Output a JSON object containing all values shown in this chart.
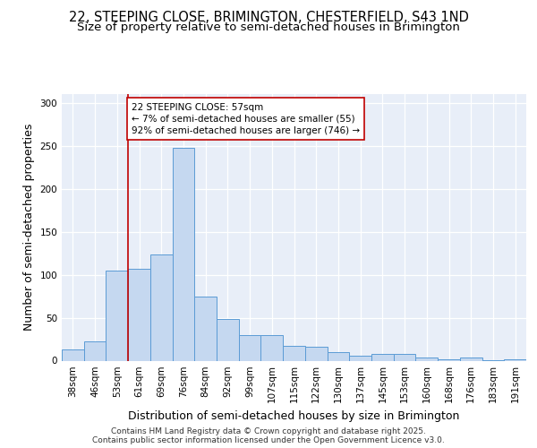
{
  "title_line1": "22, STEEPING CLOSE, BRIMINGTON, CHESTERFIELD, S43 1ND",
  "title_line2": "Size of property relative to semi-detached houses in Brimington",
  "xlabel": "Distribution of semi-detached houses by size in Brimington",
  "ylabel": "Number of semi-detached properties",
  "categories": [
    "38sqm",
    "46sqm",
    "53sqm",
    "61sqm",
    "69sqm",
    "76sqm",
    "84sqm",
    "92sqm",
    "99sqm",
    "107sqm",
    "115sqm",
    "122sqm",
    "130sqm",
    "137sqm",
    "145sqm",
    "153sqm",
    "160sqm",
    "168sqm",
    "176sqm",
    "183sqm",
    "191sqm"
  ],
  "values": [
    13,
    22,
    105,
    107,
    124,
    248,
    74,
    48,
    30,
    30,
    17,
    16,
    10,
    6,
    8,
    8,
    4,
    2,
    4,
    1,
    2
  ],
  "bar_color": "#c5d8f0",
  "bar_edge_color": "#5b9bd5",
  "bg_color": "#e8eef8",
  "grid_color": "#ffffff",
  "vline_x_index": 2.5,
  "vline_color": "#c00000",
  "annotation_box_color": "#c00000",
  "annotation_box_text": "22 STEEPING CLOSE: 57sqm\n← 7% of semi-detached houses are smaller (55)\n92% of semi-detached houses are larger (746) →",
  "ylim": [
    0,
    310
  ],
  "yticks": [
    0,
    50,
    100,
    150,
    200,
    250,
    300
  ],
  "title_fontsize": 10.5,
  "subtitle_fontsize": 9.5,
  "axis_label_fontsize": 9,
  "tick_fontsize": 7.5,
  "annotation_fontsize": 7.5,
  "footer_fontsize": 6.5,
  "footer": "Contains HM Land Registry data © Crown copyright and database right 2025.\nContains public sector information licensed under the Open Government Licence v3.0."
}
